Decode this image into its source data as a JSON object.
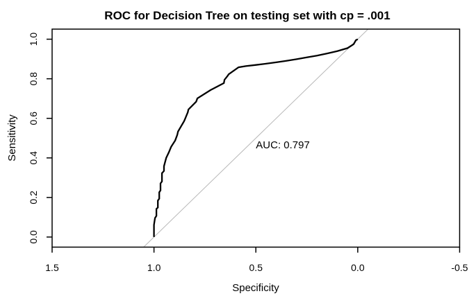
{
  "chart_data": {
    "type": "line",
    "title": "ROC for Decision Tree on testing set with cp = .001",
    "xlabel": "Specificity",
    "ylabel": "Sensitivity",
    "annotation": "AUC: 0.797",
    "auc_value": "0.797",
    "grid": false,
    "legend": "none",
    "x_axis": {
      "range": [
        1.5,
        -0.5
      ],
      "reversed": true,
      "ticks": [
        1.5,
        1.0,
        0.5,
        0.0,
        -0.5
      ],
      "tick_labels": [
        "1.5",
        "1.0",
        "0.5",
        "0.0",
        "-0.5"
      ]
    },
    "y_axis": {
      "range": [
        -0.051,
        1.051
      ],
      "ticks": [
        0.0,
        0.2,
        0.4,
        0.6,
        0.8,
        1.0
      ],
      "tick_labels": [
        "0.0",
        "0.2",
        "0.4",
        "0.6",
        "0.8",
        "1.0"
      ]
    },
    "annotation_pos": {
      "specificity": 0.5,
      "sensitivity": 0.449
    },
    "series": [
      {
        "name": "roc-curve",
        "color": "#000000",
        "width": 2.3,
        "points": [
          [
            1.0,
            0.0
          ],
          [
            1.0,
            0.061
          ],
          [
            0.995,
            0.096
          ],
          [
            0.988,
            0.107
          ],
          [
            0.988,
            0.142
          ],
          [
            0.981,
            0.149
          ],
          [
            0.981,
            0.184
          ],
          [
            0.974,
            0.194
          ],
          [
            0.974,
            0.226
          ],
          [
            0.968,
            0.236
          ],
          [
            0.968,
            0.271
          ],
          [
            0.961,
            0.281
          ],
          [
            0.961,
            0.323
          ],
          [
            0.951,
            0.334
          ],
          [
            0.951,
            0.358
          ],
          [
            0.94,
            0.4
          ],
          [
            0.927,
            0.428
          ],
          [
            0.916,
            0.456
          ],
          [
            0.896,
            0.488
          ],
          [
            0.886,
            0.516
          ],
          [
            0.882,
            0.533
          ],
          [
            0.852,
            0.586
          ],
          [
            0.848,
            0.596
          ],
          [
            0.834,
            0.631
          ],
          [
            0.831,
            0.645
          ],
          [
            0.793,
            0.684
          ],
          [
            0.787,
            0.701
          ],
          [
            0.722,
            0.743
          ],
          [
            0.657,
            0.778
          ],
          [
            0.654,
            0.795
          ],
          [
            0.64,
            0.813
          ],
          [
            0.633,
            0.823
          ],
          [
            0.585,
            0.858
          ],
          [
            0.55,
            0.864
          ],
          [
            0.5,
            0.87
          ],
          [
            0.45,
            0.876
          ],
          [
            0.4,
            0.883
          ],
          [
            0.35,
            0.891
          ],
          [
            0.3,
            0.899
          ],
          [
            0.25,
            0.908
          ],
          [
            0.2,
            0.917
          ],
          [
            0.15,
            0.928
          ],
          [
            0.1,
            0.94
          ],
          [
            0.05,
            0.955
          ],
          [
            0.02,
            0.975
          ],
          [
            0.009,
            0.995
          ],
          [
            0.0,
            1.0
          ]
        ]
      },
      {
        "name": "chance-line",
        "color": "#b8b8b8",
        "width": 1,
        "points": [
          [
            1.051,
            -0.051
          ],
          [
            -0.051,
            1.051
          ]
        ]
      }
    ]
  }
}
